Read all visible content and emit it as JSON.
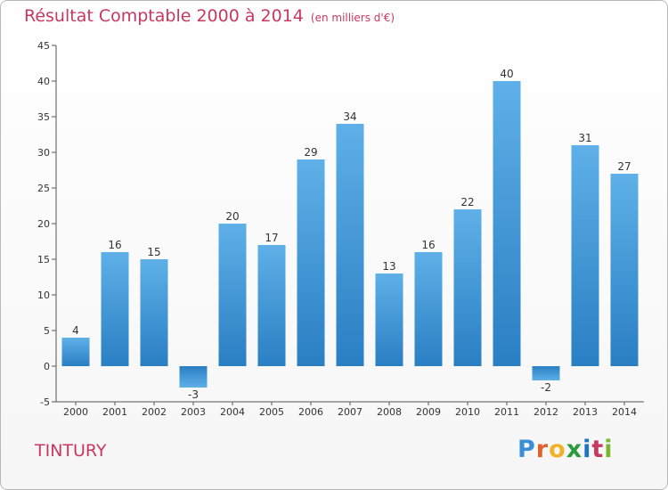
{
  "header": {
    "title": "Résultat Comptable 2000 à 2014",
    "unit": "(en milliers d'€)"
  },
  "footer": {
    "commune": "TINTURY",
    "logo_letters": [
      "P",
      "r",
      "o",
      "x",
      "i",
      "t",
      "i"
    ],
    "logo_colors": [
      "#3a8fd8",
      "#e0612b",
      "#f2b12b",
      "#2a9a3a",
      "#1d73c4",
      "#c8385f",
      "#7ab530"
    ]
  },
  "colors": {
    "bar_top": "#5fb0e8",
    "bar_bottom": "#2a7fc3",
    "title": "#c8385f",
    "axis": "#555555"
  },
  "chart_data": {
    "type": "bar",
    "title": "Résultat Comptable 2000 à 2014",
    "subtitle": "(en milliers d'€)",
    "xlabel": "",
    "ylabel": "",
    "categories": [
      "2000",
      "2001",
      "2002",
      "2003",
      "2004",
      "2005",
      "2006",
      "2007",
      "2008",
      "2009",
      "2010",
      "2011",
      "2012",
      "2013",
      "2014"
    ],
    "values": [
      4,
      16,
      15,
      -3,
      20,
      17,
      29,
      34,
      13,
      16,
      22,
      40,
      -2,
      31,
      27
    ],
    "data_labels": [
      "4",
      "16",
      "15",
      "-3",
      "20",
      "17",
      "29",
      "34",
      "13",
      "16",
      "22",
      "40",
      "-2",
      "31",
      "27"
    ],
    "ylim": [
      -5,
      45
    ],
    "yticks": [
      -5,
      0,
      5,
      10,
      15,
      20,
      25,
      30,
      35,
      40,
      45
    ],
    "ytick_labels": [
      "-5",
      "0",
      "5",
      "10",
      "15",
      "20",
      "25",
      "30",
      "35",
      "40",
      "45"
    ],
    "grid": false,
    "legend": "none"
  }
}
